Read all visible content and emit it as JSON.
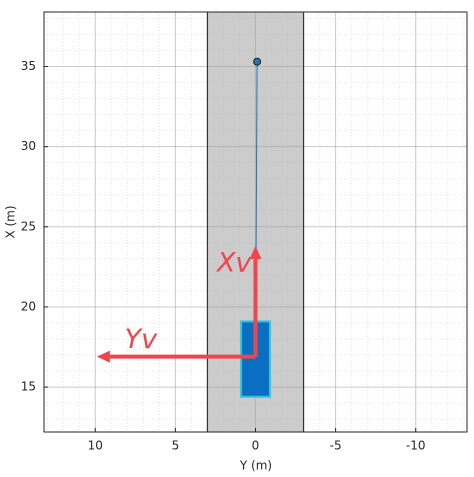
{
  "chart_data": {
    "type": "driving-scenario",
    "xlabel": "Y (m)",
    "ylabel": "X (m)",
    "xlim": [
      13.2,
      -13.2
    ],
    "ylim": [
      12.2,
      38.4
    ],
    "xticks": [
      10,
      5,
      0,
      -5,
      -10
    ],
    "yticks": [
      15,
      20,
      25,
      30,
      35
    ],
    "grid": true,
    "minor_grid_step": 1,
    "road": {
      "left": 3,
      "right": -3,
      "color": "#cccccc"
    },
    "vehicle": {
      "left": 0.9,
      "right": -0.9,
      "rear": 14.4,
      "front": 19.1,
      "color": "#0a6fc2",
      "edge": "#2ec4e6"
    },
    "trajectory": {
      "x": [
        0,
        -0.1
      ],
      "y": [
        16.9,
        35.3
      ],
      "color": "#1f77b4"
    },
    "annotations": [
      {
        "text": "Xv",
        "from": [
          0,
          16.9
        ],
        "to": [
          0,
          23.8
        ]
      },
      {
        "text": "Yv",
        "from": [
          0,
          16.9
        ],
        "to": [
          9.9,
          16.9
        ]
      }
    ],
    "annotation_color": "#f0454a"
  }
}
